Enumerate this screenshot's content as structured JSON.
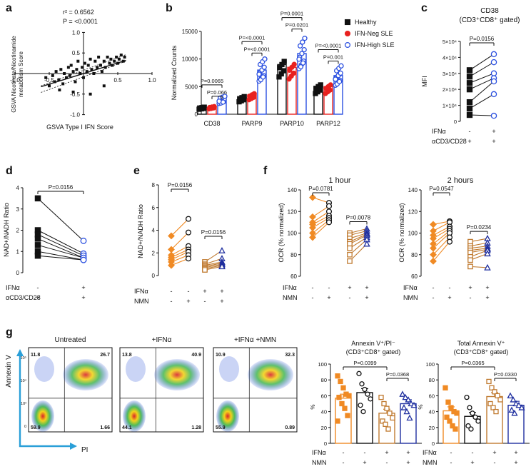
{
  "colors": {
    "healthy": "#111111",
    "ifn_neg": "#e8211f",
    "ifn_high": "#2b50e0",
    "orange": "#f08a24",
    "tan": "#c07a30",
    "navy": "#1f2f9f",
    "flow_arrow": "#2a9fd8"
  },
  "panels": {
    "a": {
      "letter": "a",
      "r2": "r² = 0.6562",
      "p": "P = <0.0001",
      "xlabel": "GSVA Type I IFN Score",
      "ylabel_1": "GSVA Nicotinate/Nicotinamide",
      "ylabel_2": "metabolism Score"
    },
    "b": {
      "letter": "b",
      "ylabel": "Normalized Counts",
      "legend": [
        "Healthy",
        "IFN-Neg SLE",
        "IFN-High SLE"
      ]
    },
    "c": {
      "letter": "c",
      "title": "CD38",
      "subtitle": "(CD3⁺CD8⁺ gated)",
      "ylabel": "MFI",
      "p": "P=0.0156",
      "row1_label": "IFNα",
      "row2_label": "αCD3/CD28",
      "row1": [
        "-",
        "+"
      ],
      "row2": [
        "+",
        "+"
      ]
    },
    "d": {
      "letter": "d",
      "ylabel": "NAD+/NADH Ratio",
      "p": "P=0.0156",
      "row1_label": "IFNα",
      "row2_label": "αCD3/CD28",
      "row1": [
        "-",
        "+"
      ],
      "row2": [
        "+",
        "+"
      ]
    },
    "e": {
      "letter": "e",
      "ylabel": "NAD+/NADH Ratio",
      "p1": "P=0.0156",
      "p2": "P=0.0156",
      "row1_label": "IFNα",
      "row2_label": "NMN",
      "row1": [
        "-",
        "-",
        "+",
        "+"
      ],
      "row2": [
        "-",
        "+",
        "-",
        "+"
      ]
    },
    "f": {
      "letter": "f",
      "title1": "1 hour",
      "title2": "2 hours",
      "ylabel": "OCR (% normalized)",
      "p1a": "P=0.0781",
      "p1b": "P=0.0078",
      "p2a": "P=0.0547",
      "p2b": "P=0.0234",
      "row1_label": "IFNα",
      "row2_label": "NMN",
      "row1": [
        "-",
        "-",
        "+",
        "+"
      ],
      "row2": [
        "-",
        "+",
        "-",
        "+"
      ]
    },
    "g": {
      "letter": "g",
      "flow_titles": [
        "Untreated",
        "+IFNα",
        "+IFNα +NMN"
      ],
      "flow_ylabel": "Annexin V",
      "flow_xlabel": "PI",
      "quadrants": [
        [
          "11.8",
          "26.7",
          "59.9",
          "1.66"
        ],
        [
          "13.8",
          "40.9",
          "44.1",
          "1.28"
        ],
        [
          "10.9",
          "32.3",
          "55.9",
          "0.89"
        ]
      ],
      "flow_ticks": [
        "0",
        "10³",
        "10⁴",
        "10⁵"
      ],
      "bar1_title": "Annexin V⁺/PI⁻",
      "bar1_subtitle": "(CD3⁺CD8⁺ gated)",
      "bar1_p1": "P=0.0399",
      "bar1_p2": "P=0.0368",
      "bar2_title": "Total Annexin V⁺",
      "bar2_subtitle": "(CD3⁺CD8⁺ gated)",
      "bar2_p1": "P=0.0365",
      "bar2_p2": "P=0.0330",
      "ylabel": "%",
      "row1_label": "IFNα",
      "row2_label": "NMN",
      "row1": [
        "-",
        "-",
        "+",
        "+"
      ],
      "row2": [
        "-",
        "+",
        "-",
        "+"
      ]
    }
  },
  "chart_data": [
    {
      "panel": "a",
      "type": "scatter",
      "title": "",
      "xlabel": "GSVA Type I IFN Score",
      "ylabel": "GSVA Nicotinate/Nicotinamide metabolism Score",
      "xlim": [
        -1.0,
        1.0
      ],
      "ylim": [
        -1.0,
        1.0
      ],
      "xticks": [
        -1.0,
        -0.5,
        0.5,
        1.0
      ],
      "yticks": [
        -1.0,
        -0.5,
        0.5,
        1.0
      ],
      "r2": 0.6562,
      "fit": {
        "x": [
          -0.62,
          0.62
        ],
        "y": [
          -0.32,
          0.32
        ]
      },
      "x": [
        -0.55,
        -0.5,
        -0.45,
        -0.42,
        -0.4,
        -0.36,
        -0.33,
        -0.3,
        -0.28,
        -0.25,
        -0.22,
        -0.2,
        -0.18,
        -0.15,
        -0.12,
        -0.1,
        -0.08,
        -0.05,
        -0.02,
        0.0,
        0.02,
        0.05,
        0.07,
        0.1,
        0.12,
        0.15,
        0.17,
        0.2,
        0.22,
        0.25,
        0.27,
        0.3,
        0.32,
        0.35,
        0.38,
        0.4,
        0.42,
        0.45,
        0.48,
        0.5,
        0.52,
        0.55,
        0.58,
        0.6,
        -0.35,
        -0.15,
        0.1,
        0.3
      ],
      "y": [
        -0.1,
        -0.3,
        -0.05,
        -0.2,
        0.05,
        -0.15,
        0.1,
        -0.25,
        0.0,
        -0.1,
        0.15,
        -0.05,
        0.2,
        0.05,
        -0.2,
        0.1,
        0.3,
        0.0,
        0.15,
        -0.1,
        0.25,
        0.05,
        0.2,
        0.35,
        0.1,
        0.0,
        0.3,
        0.15,
        0.4,
        0.2,
        0.05,
        0.3,
        0.15,
        0.4,
        0.25,
        0.35,
        0.2,
        0.3,
        0.4,
        0.25,
        0.35,
        0.45,
        0.3,
        0.4,
        -0.4,
        -0.45,
        -0.5,
        -0.3
      ]
    },
    {
      "panel": "b",
      "type": "bar",
      "ylabel": "Normalized Counts",
      "ylim": [
        0,
        15000
      ],
      "yticks": [
        0,
        5000,
        10000,
        15000
      ],
      "categories": [
        "CD38",
        "PARP9",
        "PARP10",
        "PARP12"
      ],
      "series": [
        {
          "name": "Healthy",
          "values": [
            1200,
            3000,
            9000,
            5000
          ]
        },
        {
          "name": "IFN-Neg SLE",
          "values": [
            1300,
            3500,
            8500,
            5000
          ]
        },
        {
          "name": "IFN-High SLE",
          "values": [
            2600,
            8000,
            11000,
            7000
          ]
        }
      ],
      "pvalues": [
        [
          "P=0.0065",
          "P=0.066"
        ],
        [
          "P=<0.0001",
          "P=<0.0001"
        ],
        [
          "P=0.0001",
          "P=0.0201"
        ],
        [
          "P=<0.0001",
          "P=0.001"
        ]
      ]
    },
    {
      "panel": "c",
      "type": "scatter",
      "ylabel": "MFI",
      "ylim": [
        0,
        50000
      ],
      "yticks": [
        0,
        10000,
        20000,
        30000,
        40000,
        50000
      ],
      "ytick_labels": [
        "0",
        "1×10⁴",
        "2×10⁴",
        "3×10⁴",
        "4×10⁴",
        "5×10⁴"
      ],
      "pairs": [
        [
          32000,
          42000
        ],
        [
          28000,
          37000
        ],
        [
          24000,
          30000
        ],
        [
          20000,
          27000
        ],
        [
          12000,
          25000
        ],
        [
          8000,
          17000
        ],
        [
          4000,
          3500
        ]
      ]
    },
    {
      "panel": "d",
      "type": "scatter",
      "ylabel": "NAD+/NADH Ratio",
      "ylim": [
        0,
        4
      ],
      "yticks": [
        0,
        1,
        2,
        3,
        4
      ],
      "pairs": [
        [
          3.5,
          1.5
        ],
        [
          2.0,
          0.9
        ],
        [
          1.8,
          0.8
        ],
        [
          1.6,
          0.7
        ],
        [
          1.3,
          0.7
        ],
        [
          1.0,
          0.6
        ],
        [
          0.8,
          0.6
        ]
      ]
    },
    {
      "panel": "e",
      "type": "scatter",
      "ylabel": "NAD+/NADH Ratio",
      "ylim": [
        0,
        8
      ],
      "yticks": [
        0,
        2,
        4,
        6,
        8
      ],
      "pairs_left": [
        [
          3.5,
          5.0
        ],
        [
          2.3,
          3.8
        ],
        [
          1.8,
          2.6
        ],
        [
          1.6,
          2.3
        ],
        [
          1.4,
          2.1
        ],
        [
          1.2,
          1.8
        ],
        [
          0.9,
          1.5
        ]
      ],
      "pairs_right": [
        [
          1.2,
          2.2
        ],
        [
          1.0,
          1.5
        ],
        [
          0.9,
          1.2
        ],
        [
          0.8,
          1.1
        ],
        [
          0.7,
          1.0
        ],
        [
          0.6,
          0.9
        ],
        [
          0.5,
          0.8
        ]
      ]
    },
    {
      "panel": "f1",
      "type": "scatter",
      "title": "1 hour",
      "ylabel": "OCR (% normalized)",
      "ylim": [
        60,
        140
      ],
      "yticks": [
        60,
        80,
        100,
        120,
        140
      ],
      "pairs_left": [
        [
          133,
          128
        ],
        [
          115,
          125
        ],
        [
          110,
          120
        ],
        [
          108,
          116
        ],
        [
          105,
          114
        ],
        [
          100,
          112
        ],
        [
          96,
          110
        ]
      ],
      "pairs_right": [
        [
          100,
          104
        ],
        [
          98,
          102
        ],
        [
          95,
          100
        ],
        [
          92,
          99
        ],
        [
          90,
          98
        ],
        [
          86,
          96
        ],
        [
          80,
          94
        ],
        [
          74,
          90
        ]
      ]
    },
    {
      "panel": "f2",
      "type": "scatter",
      "title": "2 hours",
      "ylabel": "OCR (% normalized)",
      "ylim": [
        60,
        140
      ],
      "yticks": [
        60,
        80,
        100,
        120,
        140
      ],
      "pairs_left": [
        [
          108,
          111
        ],
        [
          102,
          110
        ],
        [
          98,
          106
        ],
        [
          95,
          104
        ],
        [
          90,
          102
        ],
        [
          86,
          100
        ],
        [
          80,
          96
        ],
        [
          74,
          92
        ]
      ],
      "pairs_right": [
        [
          92,
          95
        ],
        [
          88,
          91
        ],
        [
          86,
          88
        ],
        [
          84,
          86
        ],
        [
          82,
          85
        ],
        [
          78,
          84
        ],
        [
          75,
          81
        ],
        [
          69,
          68
        ]
      ]
    },
    {
      "panel": "g1",
      "type": "bar",
      "title": "Annexin V⁺/PI⁻",
      "ylabel": "%",
      "ylim": [
        0,
        100
      ],
      "yticks": [
        0,
        20,
        40,
        60,
        80,
        100
      ],
      "values": [
        57,
        64,
        38,
        50
      ],
      "points": [
        [
          85,
          78,
          70,
          62,
          60,
          58,
          50,
          44,
          35,
          28
        ],
        [
          88,
          75,
          68,
          62,
          56,
          48,
          40
        ],
        [
          58,
          50,
          44,
          38,
          32,
          28,
          24,
          18
        ],
        [
          62,
          58,
          55,
          50,
          48,
          45,
          40,
          32
        ]
      ]
    },
    {
      "panel": "g2",
      "type": "bar",
      "title": "Total Annexin V⁺",
      "ylabel": "%",
      "ylim": [
        0,
        100
      ],
      "yticks": [
        0,
        20,
        40,
        60,
        80,
        100
      ],
      "values": [
        41,
        34,
        59,
        48
      ],
      "points": [
        [
          70,
          52,
          45,
          40,
          38,
          33,
          28,
          22,
          18
        ],
        [
          58,
          45,
          38,
          33,
          28,
          22,
          18
        ],
        [
          78,
          70,
          65,
          60,
          55,
          50,
          45,
          40
        ],
        [
          60,
          55,
          50,
          48,
          45,
          42,
          38
        ]
      ]
    }
  ]
}
